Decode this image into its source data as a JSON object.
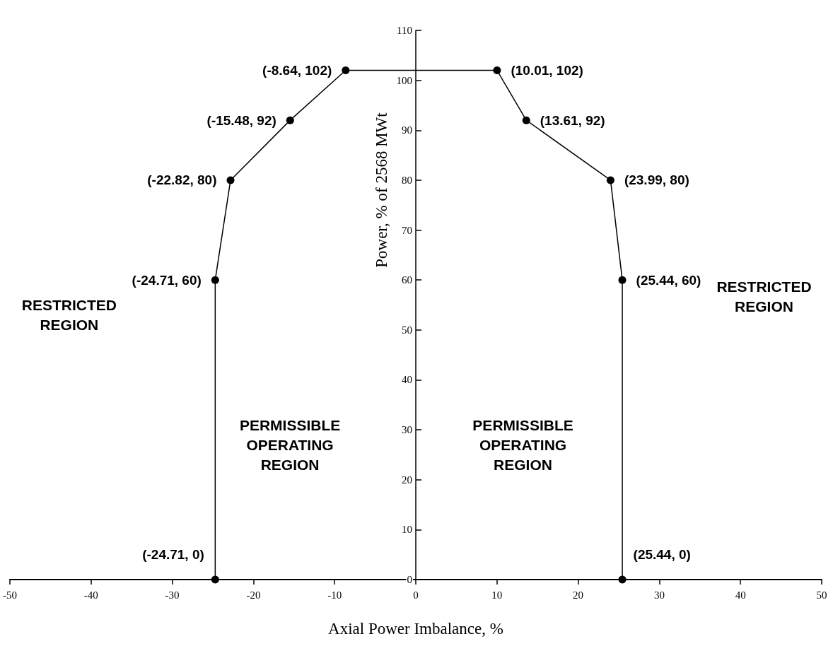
{
  "chart_data": {
    "type": "line",
    "xlabel": "Axial Power Imbalance, %",
    "ylabel": "Power, % of 2568 MWt",
    "x": [
      -24.71,
      -24.71,
      -22.82,
      -15.48,
      -8.64,
      10.01,
      13.61,
      23.99,
      25.44,
      25.44
    ],
    "series": [
      {
        "color": "#000000",
        "values": [
          0,
          60,
          80,
          92,
          102,
          102,
          92,
          80,
          60,
          0
        ],
        "value_labels": [
          "(-24.71, 0)",
          "(-24.71, 60)",
          "(-22.82, 80)",
          "(-15.48, 92)",
          "(-8.64, 102)",
          "(10.01, 102)",
          "(13.61, 92)",
          "(23.99, 80)",
          "(25.44, 60)",
          "(25.44, 0)"
        ]
      }
    ],
    "xlim": [
      -50,
      50
    ],
    "xticks": [
      -50,
      -40,
      -30,
      -20,
      -10,
      0,
      10,
      20,
      30,
      40,
      50
    ],
    "ylim": [
      0,
      110
    ],
    "yticks": [
      0,
      10,
      20,
      30,
      40,
      50,
      60,
      70,
      80,
      90,
      100,
      110
    ],
    "marker": "circle",
    "line_style": "solid",
    "annotations": [
      "RESTRICTED\nREGION",
      "RESTRICTED\nREGION",
      "PERMISSIBLE\nOPERATING\nREGION",
      "PERMISSIBLE\nOPERATING\nREGION"
    ]
  }
}
